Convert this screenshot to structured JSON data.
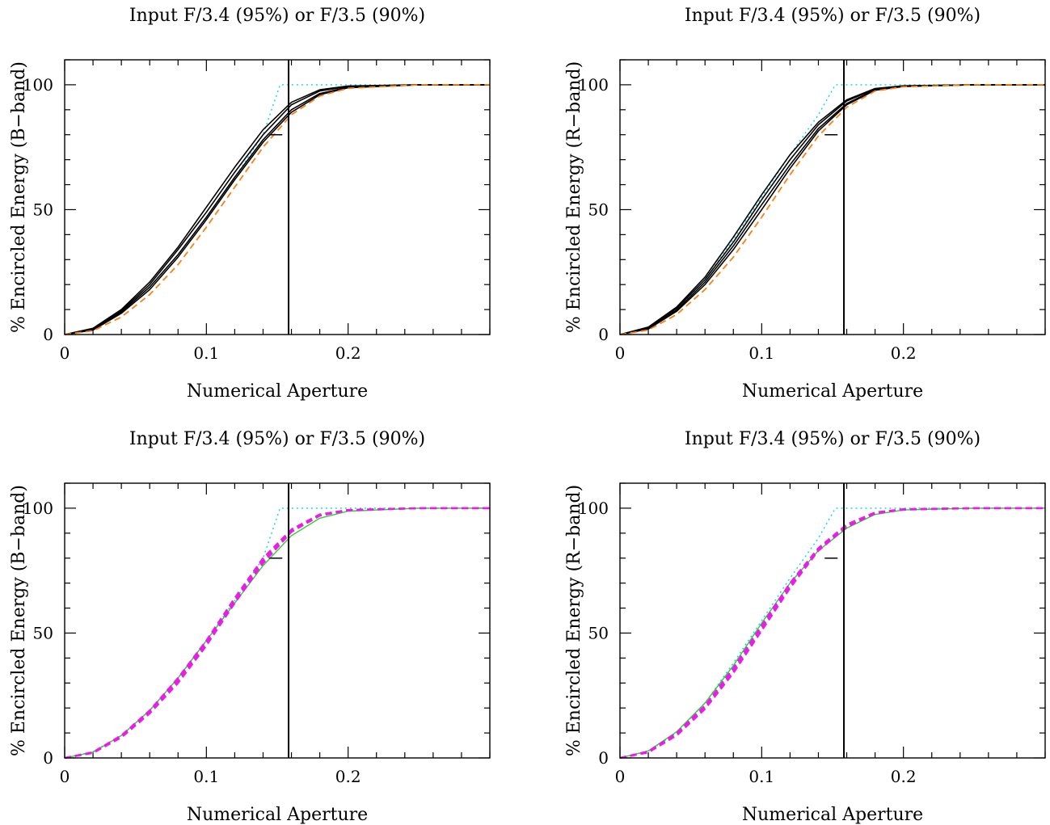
{
  "colors": {
    "black": "#000000",
    "cyan_dotted": "#00d8e8",
    "orange_dashed": "#ff7f0e",
    "magenta_dashed": "#e61ee6",
    "green_solid": "#33cc33"
  },
  "chart_data": [
    {
      "type": "line",
      "panel": "top-left",
      "title": "Input F/3.4 (95%) or F/3.5 (90%)",
      "xlabel": "Numerical Aperture",
      "ylabel": "% Encircled Energy (B−band)",
      "xlim": [
        0,
        0.3
      ],
      "ylim": [
        0,
        110
      ],
      "xticks": [
        0,
        0.1,
        0.2
      ],
      "xtick_labels": [
        "0",
        "0.1",
        "0.2"
      ],
      "yticks": [
        0,
        50,
        100
      ],
      "ytick_labels": [
        "0",
        "50",
        "100"
      ],
      "vline_x": 0.158,
      "marker": {
        "x": 0.149,
        "y": 80
      },
      "grid": false,
      "series": [
        {
          "style": "cyan-dotted",
          "x": [
            0,
            0.02,
            0.04,
            0.06,
            0.08,
            0.1,
            0.12,
            0.14,
            0.152,
            0.16,
            0.2,
            0.3
          ],
          "y": [
            0,
            2.5,
            9,
            19,
            32,
            47,
            63,
            80,
            100,
            100,
            100,
            100
          ]
        },
        {
          "style": "black-solid",
          "x": [
            0,
            0.02,
            0.04,
            0.06,
            0.08,
            0.1,
            0.12,
            0.14,
            0.16,
            0.18,
            0.2,
            0.25,
            0.3
          ],
          "y": [
            0,
            2.5,
            10,
            21,
            35,
            51,
            67,
            82,
            93,
            98,
            99.5,
            100,
            100
          ]
        },
        {
          "style": "black-solid",
          "x": [
            0,
            0.02,
            0.04,
            0.06,
            0.08,
            0.1,
            0.12,
            0.14,
            0.16,
            0.18,
            0.2,
            0.25,
            0.3
          ],
          "y": [
            0,
            2.2,
            9.5,
            20,
            34,
            49,
            65,
            80,
            92,
            97.5,
            99.3,
            100,
            100
          ]
        },
        {
          "style": "black-solid",
          "x": [
            0,
            0.02,
            0.04,
            0.06,
            0.08,
            0.1,
            0.12,
            0.14,
            0.16,
            0.18,
            0.2,
            0.25,
            0.3
          ],
          "y": [
            0,
            2,
            9,
            19,
            32,
            47,
            63,
            78,
            90,
            96.5,
            99,
            100,
            100
          ]
        },
        {
          "style": "black-solid",
          "x": [
            0,
            0.02,
            0.04,
            0.06,
            0.08,
            0.1,
            0.12,
            0.14,
            0.16,
            0.18,
            0.2,
            0.25,
            0.3
          ],
          "y": [
            0,
            1.8,
            8.5,
            18,
            31,
            46,
            62,
            77,
            89,
            96,
            98.8,
            100,
            100
          ]
        },
        {
          "style": "orange-dashed",
          "x": [
            0,
            0.02,
            0.04,
            0.06,
            0.08,
            0.1,
            0.12,
            0.14,
            0.16,
            0.18,
            0.2,
            0.25,
            0.3
          ],
          "y": [
            0,
            1.5,
            7,
            16,
            28,
            43,
            59,
            75,
            88,
            95.5,
            98.6,
            100,
            100
          ]
        }
      ]
    },
    {
      "type": "line",
      "panel": "top-right",
      "title": "Input F/3.4 (95%) or F/3.5 (90%)",
      "xlabel": "Numerical Aperture",
      "ylabel": "% Encircled Energy (R−band)",
      "xlim": [
        0,
        0.3
      ],
      "ylim": [
        0,
        110
      ],
      "xticks": [
        0,
        0.1,
        0.2
      ],
      "xtick_labels": [
        "0",
        "0.1",
        "0.2"
      ],
      "yticks": [
        0,
        50,
        100
      ],
      "ytick_labels": [
        "0",
        "50",
        "100"
      ],
      "vline_x": 0.158,
      "marker": {
        "x": 0.149,
        "y": 80
      },
      "grid": false,
      "series": [
        {
          "style": "cyan-dotted",
          "x": [
            0,
            0.02,
            0.04,
            0.06,
            0.08,
            0.1,
            0.12,
            0.14,
            0.152,
            0.16,
            0.2,
            0.3
          ],
          "y": [
            0,
            2.7,
            10,
            22,
            38,
            55,
            72,
            88,
            100,
            100,
            100,
            100
          ]
        },
        {
          "style": "black-solid",
          "x": [
            0,
            0.02,
            0.04,
            0.06,
            0.08,
            0.1,
            0.12,
            0.14,
            0.16,
            0.18,
            0.2,
            0.25,
            0.3
          ],
          "y": [
            0,
            3,
            11,
            23,
            39,
            56,
            72,
            85,
            94,
            98.5,
            99.6,
            100,
            100
          ]
        },
        {
          "style": "black-solid",
          "x": [
            0,
            0.02,
            0.04,
            0.06,
            0.08,
            0.1,
            0.12,
            0.14,
            0.16,
            0.18,
            0.2,
            0.25,
            0.3
          ],
          "y": [
            0,
            2.7,
            10.5,
            22,
            37,
            54,
            70,
            84,
            93.5,
            98.3,
            99.5,
            100,
            100
          ]
        },
        {
          "style": "black-solid",
          "x": [
            0,
            0.02,
            0.04,
            0.06,
            0.08,
            0.1,
            0.12,
            0.14,
            0.16,
            0.18,
            0.2,
            0.25,
            0.3
          ],
          "y": [
            0,
            2.4,
            9.8,
            21,
            35.5,
            52,
            68,
            82.5,
            92.5,
            98,
            99.4,
            100,
            100
          ]
        },
        {
          "style": "black-solid",
          "x": [
            0,
            0.02,
            0.04,
            0.06,
            0.08,
            0.1,
            0.12,
            0.14,
            0.16,
            0.18,
            0.2,
            0.25,
            0.3
          ],
          "y": [
            0,
            2.2,
            9.3,
            20,
            34,
            50,
            66.5,
            81.5,
            92,
            97.8,
            99.3,
            100,
            100
          ]
        },
        {
          "style": "orange-dashed",
          "x": [
            0,
            0.02,
            0.04,
            0.06,
            0.08,
            0.1,
            0.12,
            0.14,
            0.16,
            0.18,
            0.2,
            0.25,
            0.3
          ],
          "y": [
            0,
            1.8,
            8,
            18,
            31,
            47,
            64,
            79.5,
            91,
            97.5,
            99.2,
            100,
            100
          ]
        }
      ]
    },
    {
      "type": "line",
      "panel": "bottom-left",
      "title": "Input F/3.4 (95%) or F/3.5 (90%)",
      "xlabel": "Numerical Aperture",
      "ylabel": "% Encircled Energy (B−band)",
      "xlim": [
        0,
        0.3
      ],
      "ylim": [
        0,
        110
      ],
      "xticks": [
        0,
        0.1,
        0.2
      ],
      "xtick_labels": [
        "0",
        "0.1",
        "0.2"
      ],
      "yticks": [
        0,
        50,
        100
      ],
      "ytick_labels": [
        "0",
        "50",
        "100"
      ],
      "vline_x": 0.158,
      "marker": {
        "x": 0.149,
        "y": 80
      },
      "grid": false,
      "series": [
        {
          "style": "cyan-dotted",
          "x": [
            0,
            0.02,
            0.04,
            0.06,
            0.08,
            0.1,
            0.12,
            0.14,
            0.152,
            0.16,
            0.2,
            0.3
          ],
          "y": [
            0,
            2.5,
            9,
            19,
            32,
            47,
            63,
            80,
            100,
            100,
            100,
            100
          ]
        },
        {
          "style": "green-solid",
          "x": [
            0,
            0.02,
            0.04,
            0.06,
            0.08,
            0.1,
            0.12,
            0.14,
            0.16,
            0.18,
            0.2,
            0.25,
            0.3
          ],
          "y": [
            0,
            2.3,
            9,
            19,
            32,
            47,
            62,
            77,
            89,
            96,
            98.8,
            100,
            100
          ]
        },
        {
          "style": "magenta-dashed",
          "x": [
            0,
            0.02,
            0.04,
            0.06,
            0.08,
            0.1,
            0.12,
            0.14,
            0.16,
            0.18,
            0.2,
            0.25,
            0.3
          ],
          "y": [
            0,
            2.3,
            9,
            19,
            32,
            47,
            64,
            80,
            91.5,
            97.5,
            99.3,
            100,
            100
          ]
        },
        {
          "style": "magenta-dashed",
          "x": [
            0,
            0.02,
            0.04,
            0.06,
            0.08,
            0.1,
            0.12,
            0.14,
            0.16,
            0.18,
            0.2,
            0.25,
            0.3
          ],
          "y": [
            0,
            2.1,
            8.6,
            18.4,
            31,
            46,
            63,
            79,
            91,
            97.3,
            99.2,
            100,
            100
          ]
        },
        {
          "style": "magenta-dashed",
          "x": [
            0,
            0.02,
            0.04,
            0.06,
            0.08,
            0.1,
            0.12,
            0.14,
            0.16,
            0.18,
            0.2,
            0.25,
            0.3
          ],
          "y": [
            0,
            2,
            8.2,
            17.8,
            30,
            45,
            62,
            78,
            90.5,
            97,
            99.1,
            100,
            100
          ]
        }
      ]
    },
    {
      "type": "line",
      "panel": "bottom-right",
      "title": "Input F/3.4 (95%) or F/3.5 (90%)",
      "xlabel": "Numerical Aperture",
      "ylabel": "% Encircled Energy (R−band)",
      "xlim": [
        0,
        0.3
      ],
      "ylim": [
        0,
        110
      ],
      "xticks": [
        0,
        0.1,
        0.2
      ],
      "xtick_labels": [
        "0",
        "0.1",
        "0.2"
      ],
      "yticks": [
        0,
        50,
        100
      ],
      "ytick_labels": [
        "0",
        "50",
        "100"
      ],
      "vline_x": 0.158,
      "marker": {
        "x": 0.149,
        "y": 80
      },
      "grid": false,
      "series": [
        {
          "style": "cyan-dotted",
          "x": [
            0,
            0.02,
            0.04,
            0.06,
            0.08,
            0.1,
            0.12,
            0.14,
            0.152,
            0.16,
            0.2,
            0.3
          ],
          "y": [
            0,
            2.7,
            10,
            22,
            38,
            55,
            72,
            88,
            100,
            100,
            100,
            100
          ]
        },
        {
          "style": "green-solid",
          "x": [
            0,
            0.02,
            0.04,
            0.06,
            0.08,
            0.1,
            0.12,
            0.14,
            0.16,
            0.18,
            0.2,
            0.25,
            0.3
          ],
          "y": [
            0,
            2.8,
            10.5,
            22,
            37,
            54,
            70,
            83,
            92,
            97.5,
            99.3,
            100,
            100
          ]
        },
        {
          "style": "magenta-dashed",
          "x": [
            0,
            0.02,
            0.04,
            0.06,
            0.08,
            0.1,
            0.12,
            0.14,
            0.16,
            0.18,
            0.2,
            0.25,
            0.3
          ],
          "y": [
            0,
            2.6,
            10,
            21,
            36,
            53,
            70,
            84,
            93.5,
            98.3,
            99.6,
            100,
            100
          ]
        },
        {
          "style": "magenta-dashed",
          "x": [
            0,
            0.02,
            0.04,
            0.06,
            0.08,
            0.1,
            0.12,
            0.14,
            0.16,
            0.18,
            0.2,
            0.25,
            0.3
          ],
          "y": [
            0,
            2.4,
            9.5,
            20.3,
            35,
            52,
            69,
            83.5,
            93,
            98.1,
            99.5,
            100,
            100
          ]
        },
        {
          "style": "magenta-dashed",
          "x": [
            0,
            0.02,
            0.04,
            0.06,
            0.08,
            0.1,
            0.12,
            0.14,
            0.16,
            0.18,
            0.2,
            0.25,
            0.3
          ],
          "y": [
            0,
            2.2,
            9,
            19.6,
            34,
            51,
            68,
            83,
            92.5,
            97.9,
            99.4,
            100,
            100
          ]
        }
      ]
    }
  ]
}
